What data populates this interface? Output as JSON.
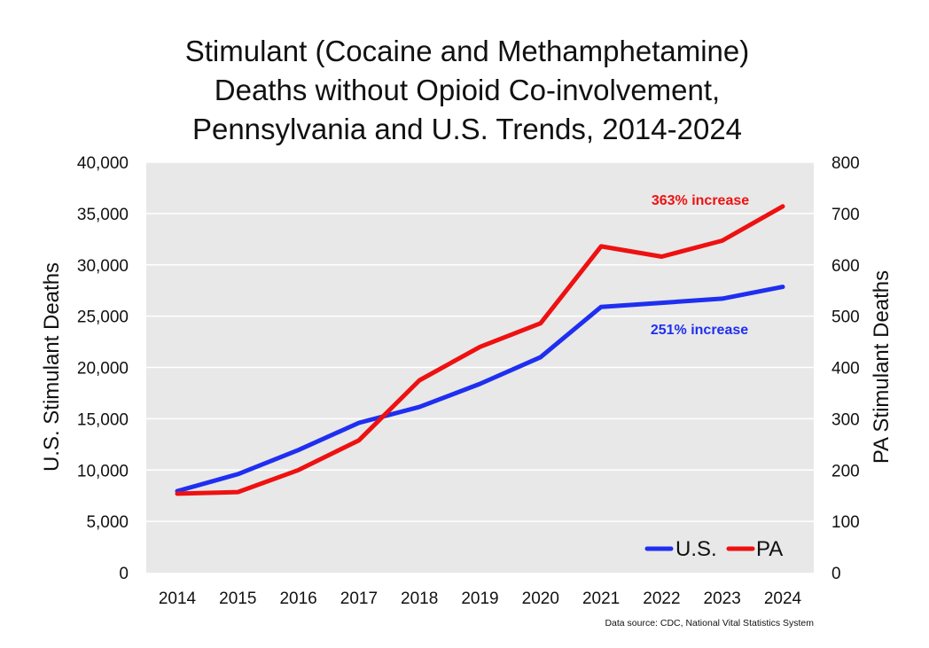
{
  "chart_data": {
    "type": "line",
    "title": [
      "Stimulant (Cocaine and Methamphetamine)",
      "Deaths without Opioid Co-involvement,",
      "Pennsylvania and U.S. Trends, 2014-2024"
    ],
    "categories": [
      "2014",
      "2015",
      "2016",
      "2017",
      "2018",
      "2019",
      "2020",
      "2021",
      "2022",
      "2023",
      "2024"
    ],
    "y_left": {
      "label": "U.S. Stimulant Deaths",
      "range": [
        0,
        40000
      ],
      "ticks": [
        "0",
        "5,000",
        "10,000",
        "15,000",
        "20,000",
        "25,000",
        "30,000",
        "35,000",
        "40,000"
      ]
    },
    "y_right": {
      "label": "PA Stimulant Deaths",
      "range": [
        0,
        800
      ],
      "ticks": [
        "0",
        "100",
        "200",
        "300",
        "400",
        "500",
        "600",
        "700",
        "800"
      ]
    },
    "series": [
      {
        "name": "U.S.",
        "axis": "left",
        "color": "#1f2ff0",
        "values": [
          7950,
          9600,
          11950,
          14600,
          16150,
          18400,
          21000,
          25900,
          26300,
          26700,
          27850
        ]
      },
      {
        "name": "PA",
        "axis": "right",
        "color": "#ee1111",
        "values": [
          154,
          157,
          200,
          258,
          375,
          440,
          486,
          636,
          616,
          647,
          714
        ]
      }
    ],
    "annotations": [
      {
        "text": "363% increase",
        "series": "PA",
        "color": "#ee1111"
      },
      {
        "text": "251% increase",
        "series": "U.S.",
        "color": "#1f2ff0"
      }
    ],
    "legend": {
      "position": "bottom-right",
      "entries": [
        "U.S.",
        "PA"
      ]
    },
    "grid": true,
    "plot_background": "#e8e8e8",
    "source": "Data source: CDC, National Vital Statistics System"
  }
}
